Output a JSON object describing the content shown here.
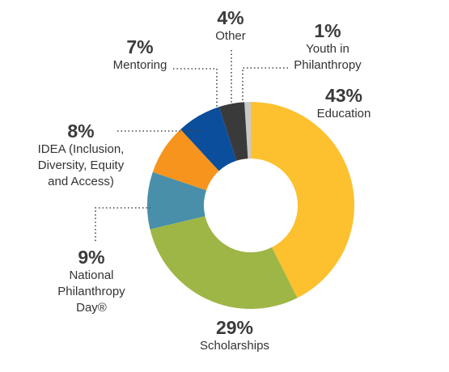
{
  "chart_data": {
    "type": "donut",
    "categories": [
      "Education",
      "Scholarships",
      "National Philanthropy Day®",
      "IDEA (Inclusion, Diversity, Equity and Access)",
      "Mentoring",
      "Other",
      "Youth in Philanthropy"
    ],
    "values": [
      43,
      29,
      9,
      8,
      7,
      4,
      1
    ],
    "value_labels": [
      "43%",
      "29%",
      "9%",
      "8%",
      "7%",
      "4%",
      "1%"
    ],
    "colors": [
      "#fdc02f",
      "#9db646",
      "#4a8fa9",
      "#f7941d",
      "#0b4e9b",
      "#3a3a3a",
      "#c9c9c9"
    ]
  }
}
